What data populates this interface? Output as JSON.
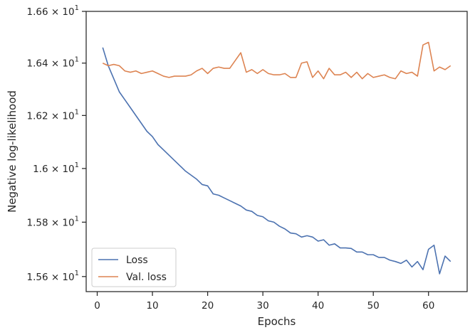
{
  "chart_data": {
    "type": "line",
    "xlabel": "Epochs",
    "ylabel": "Negative log-likelihood",
    "xlim": [
      -2,
      67
    ],
    "ylim": [
      15.545,
      16.6
    ],
    "yscale": "log",
    "grid": false,
    "legend_position": "lower-left",
    "xticks": [
      0,
      10,
      20,
      30,
      40,
      50,
      60
    ],
    "yticks": [
      {
        "value": 15.6,
        "mantissa": "1.56",
        "base": "10",
        "exponent": "1"
      },
      {
        "value": 15.8,
        "mantissa": "1.58",
        "base": "10",
        "exponent": "1"
      },
      {
        "value": 16.0,
        "mantissa": "1.6",
        "base": "10",
        "exponent": "1"
      },
      {
        "value": 16.2,
        "mantissa": "1.62",
        "base": "10",
        "exponent": "1"
      },
      {
        "value": 16.4,
        "mantissa": "1.64",
        "base": "10",
        "exponent": "1"
      },
      {
        "value": 16.6,
        "mantissa": "1.66",
        "base": "10",
        "exponent": "1"
      }
    ],
    "x": [
      1,
      2,
      3,
      4,
      5,
      6,
      7,
      8,
      9,
      10,
      11,
      12,
      13,
      14,
      15,
      16,
      17,
      18,
      19,
      20,
      21,
      22,
      23,
      24,
      25,
      26,
      27,
      28,
      29,
      30,
      31,
      32,
      33,
      34,
      35,
      36,
      37,
      38,
      39,
      40,
      41,
      42,
      43,
      44,
      45,
      46,
      47,
      48,
      49,
      50,
      51,
      52,
      53,
      54,
      55,
      56,
      57,
      58,
      59,
      60,
      61,
      62,
      63,
      64
    ],
    "series": [
      {
        "name": "Loss",
        "color": "#4c72b0",
        "values": [
          16.46,
          16.39,
          16.34,
          16.29,
          16.26,
          16.23,
          16.2,
          16.17,
          16.14,
          16.12,
          16.09,
          16.07,
          16.05,
          16.03,
          16.01,
          15.99,
          15.975,
          15.96,
          15.94,
          15.935,
          15.905,
          15.9,
          15.89,
          15.88,
          15.87,
          15.86,
          15.845,
          15.84,
          15.825,
          15.82,
          15.805,
          15.8,
          15.785,
          15.775,
          15.76,
          15.757,
          15.745,
          15.75,
          15.745,
          15.73,
          15.735,
          15.715,
          15.72,
          15.705,
          15.705,
          15.703,
          15.69,
          15.69,
          15.68,
          15.68,
          15.67,
          15.67,
          15.66,
          15.655,
          15.648,
          15.66,
          15.635,
          15.655,
          15.625,
          15.7,
          15.715,
          15.61,
          15.675,
          15.655
        ]
      },
      {
        "name": "Val. loss",
        "color": "#dd8452",
        "values": [
          16.4,
          16.39,
          16.395,
          16.39,
          16.37,
          16.365,
          16.37,
          16.36,
          16.365,
          16.37,
          16.36,
          16.35,
          16.345,
          16.35,
          16.35,
          16.35,
          16.355,
          16.37,
          16.38,
          16.36,
          16.38,
          16.385,
          16.38,
          16.38,
          16.41,
          16.44,
          16.365,
          16.375,
          16.36,
          16.375,
          16.36,
          16.355,
          16.355,
          16.36,
          16.345,
          16.345,
          16.4,
          16.405,
          16.345,
          16.37,
          16.34,
          16.38,
          16.355,
          16.355,
          16.365,
          16.345,
          16.365,
          16.34,
          16.36,
          16.345,
          16.35,
          16.355,
          16.345,
          16.34,
          16.37,
          16.36,
          16.365,
          16.35,
          16.47,
          16.48,
          16.37,
          16.385,
          16.375,
          16.39
        ]
      }
    ]
  }
}
